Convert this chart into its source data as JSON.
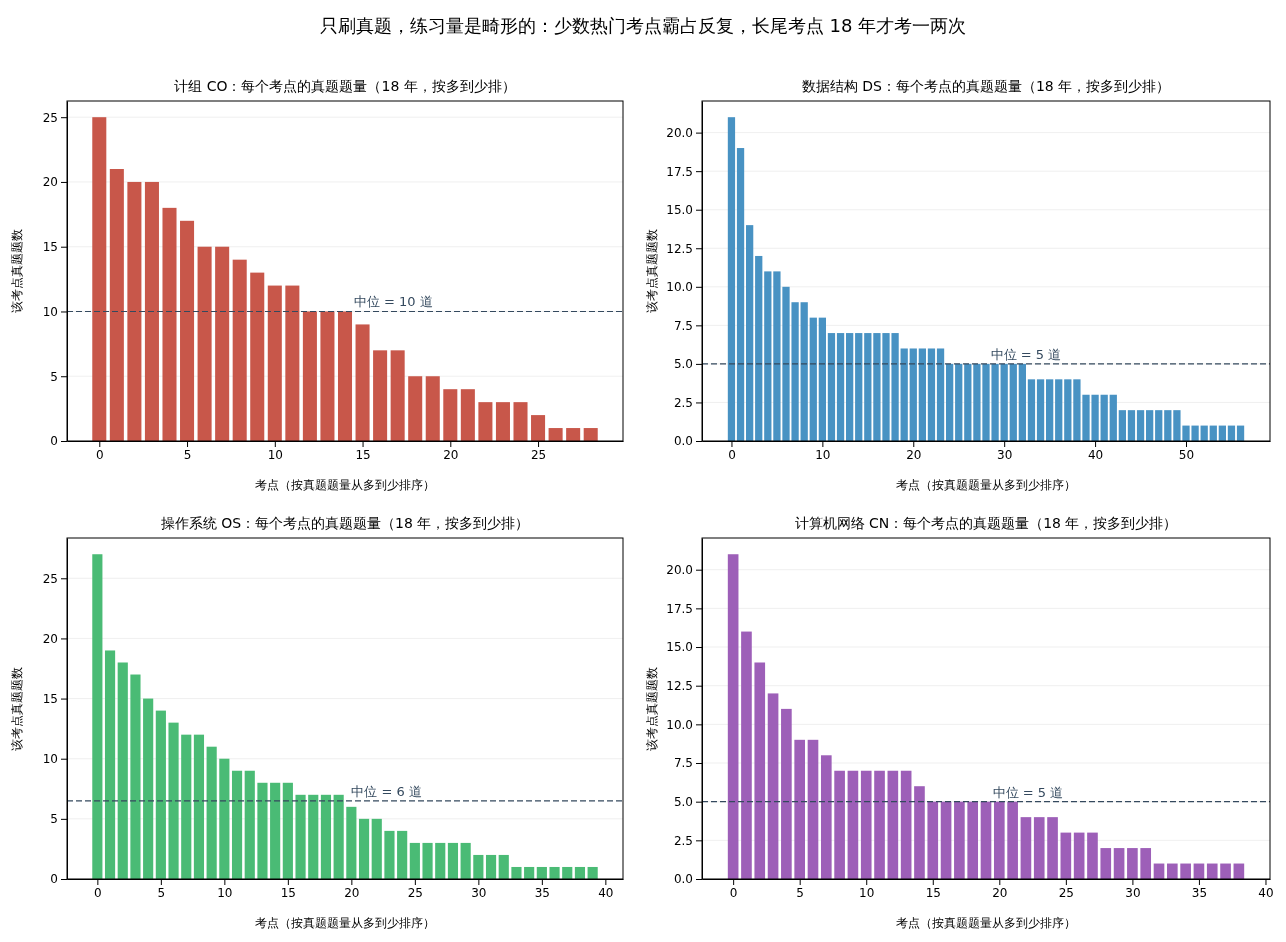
{
  "chart_data": [
    {
      "type": "bar",
      "title": "计组 CO：每个考点的真题题量（18 年，按多到少排）",
      "xlabel": "考点（按真题题量从多到少排序）",
      "ylabel": "该考点真题题数",
      "annotations": [
        "只刷真题，练习量是畸形的：少数热门考点霸占反复，长尾考点 18 年才考一两次"
      ],
      "color": "#c8574a",
      "grid": "y",
      "x": [
        0,
        1,
        2,
        3,
        4,
        5,
        6,
        7,
        8,
        9,
        10,
        11,
        12,
        13,
        14,
        15,
        16,
        17,
        18,
        19,
        20,
        21,
        22,
        23,
        24,
        25,
        26,
        27,
        28
      ],
      "values": [
        25,
        21,
        20,
        20,
        18,
        17,
        15,
        15,
        14,
        13,
        12,
        12,
        10,
        10,
        10,
        9,
        7,
        7,
        5,
        5,
        4,
        4,
        3,
        3,
        3,
        2,
        1,
        1,
        1
      ],
      "xlim": [
        -1.84,
        29.84
      ],
      "xticks": [
        0,
        5,
        10,
        15,
        20,
        25
      ],
      "ylim": [
        0,
        26.25
      ],
      "yticks": [
        0,
        5,
        10,
        15,
        20,
        25
      ],
      "ref_lines": [
        {
          "axis": "y",
          "value": 10,
          "label": "中位 = 10 道",
          "color": "#34495e",
          "line_style": "dashed"
        }
      ]
    },
    {
      "type": "bar",
      "title": "数据结构 DS：每个考点的真题题量（18 年，按多到少排）",
      "xlabel": "考点（按真题题量从多到少排序）",
      "ylabel": "该考点真题题数",
      "color": "#4892c3",
      "grid": "y",
      "x": [
        0,
        1,
        2,
        3,
        4,
        5,
        6,
        7,
        8,
        9,
        10,
        11,
        12,
        13,
        14,
        15,
        16,
        17,
        18,
        19,
        20,
        21,
        22,
        23,
        24,
        25,
        26,
        27,
        28,
        29,
        30,
        31,
        32,
        33,
        34,
        35,
        36,
        37,
        38,
        39,
        40,
        41,
        42,
        43,
        44,
        45,
        46,
        47,
        48,
        49,
        50,
        51,
        52,
        53,
        54,
        55,
        56
      ],
      "values": [
        21,
        19,
        14,
        12,
        11,
        11,
        10,
        9,
        9,
        8,
        8,
        7,
        7,
        7,
        7,
        7,
        7,
        7,
        7,
        6,
        6,
        6,
        6,
        6,
        5,
        5,
        5,
        5,
        5,
        5,
        5,
        5,
        5,
        4,
        4,
        4,
        4,
        4,
        4,
        3,
        3,
        3,
        3,
        2,
        2,
        2,
        2,
        2,
        2,
        2,
        1,
        1,
        1,
        1,
        1,
        1,
        1
      ],
      "xlim": [
        -3.24,
        59.24
      ],
      "xticks": [
        0,
        10,
        20,
        30,
        40,
        50
      ],
      "ylim": [
        0,
        22.05
      ],
      "yticks": [
        {
          "value": 0,
          "label": "0.0"
        },
        {
          "value": 2.5,
          "label": "2.5"
        },
        {
          "value": 5,
          "label": "5.0"
        },
        {
          "value": 7.5,
          "label": "7.5"
        },
        {
          "value": 10,
          "label": "10.0"
        },
        {
          "value": 12.5,
          "label": "12.5"
        },
        {
          "value": 15,
          "label": "15.0"
        },
        {
          "value": 17.5,
          "label": "17.5"
        },
        {
          "value": 20,
          "label": "20.0"
        }
      ],
      "ref_lines": [
        {
          "axis": "y",
          "value": 5,
          "label": "中位 = 5 道",
          "color": "#34495e",
          "line_style": "dashed"
        }
      ]
    },
    {
      "type": "bar",
      "title": "操作系统 OS：每个考点的真题题量（18 年，按多到少排）",
      "xlabel": "考点（按真题题量从多到少排序）",
      "ylabel": "该考点真题题数",
      "color": "#4abb75",
      "grid": "y",
      "x": [
        0,
        1,
        2,
        3,
        4,
        5,
        6,
        7,
        8,
        9,
        10,
        11,
        12,
        13,
        14,
        15,
        16,
        17,
        18,
        19,
        20,
        21,
        22,
        23,
        24,
        25,
        26,
        27,
        28,
        29,
        30,
        31,
        32,
        33,
        34,
        35,
        36,
        37,
        38,
        39
      ],
      "values": [
        27,
        19,
        18,
        17,
        15,
        14,
        13,
        12,
        12,
        11,
        10,
        9,
        9,
        8,
        8,
        8,
        7,
        7,
        7,
        7,
        6,
        5,
        5,
        4,
        4,
        3,
        3,
        3,
        3,
        3,
        2,
        2,
        2,
        1,
        1,
        1,
        1,
        1,
        1,
        1
      ],
      "xlim": [
        -2.39,
        41.39
      ],
      "xticks": [
        0,
        5,
        10,
        15,
        20,
        25,
        30,
        35,
        40
      ],
      "ylim": [
        0,
        28.35
      ],
      "yticks": [
        0,
        5,
        10,
        15,
        20,
        25
      ],
      "ref_lines": [
        {
          "axis": "y",
          "value": 6.5,
          "label": "中位 = 6 道",
          "color": "#34495e",
          "line_style": "dashed"
        }
      ]
    },
    {
      "type": "bar",
      "title": "计算机网络 CN：每个考点的真题题量（18 年，按多到少排）",
      "xlabel": "考点（按真题题量从多到少排序）",
      "ylabel": "该考点真题题数",
      "color": "#9d5fb8",
      "grid": "y",
      "x": [
        0,
        1,
        2,
        3,
        4,
        5,
        6,
        7,
        8,
        9,
        10,
        11,
        12,
        13,
        14,
        15,
        16,
        17,
        18,
        19,
        20,
        21,
        22,
        23,
        24,
        25,
        26,
        27,
        28,
        29,
        30,
        31,
        32,
        33,
        34,
        35,
        36,
        37,
        38
      ],
      "values": [
        21,
        16,
        14,
        12,
        11,
        9,
        9,
        8,
        7,
        7,
        7,
        7,
        7,
        7,
        6,
        5,
        5,
        5,
        5,
        5,
        5,
        5,
        4,
        4,
        4,
        3,
        3,
        3,
        2,
        2,
        2,
        2,
        1,
        1,
        1,
        1,
        1,
        1,
        1
      ],
      "xlim": [
        -2.34,
        40.34
      ],
      "xticks": [
        0,
        5,
        10,
        15,
        20,
        25,
        30,
        35,
        40
      ],
      "ylim": [
        0,
        22.05
      ],
      "yticks": [
        {
          "value": 0,
          "label": "0.0"
        },
        {
          "value": 2.5,
          "label": "2.5"
        },
        {
          "value": 5,
          "label": "5.0"
        },
        {
          "value": 7.5,
          "label": "7.5"
        },
        {
          "value": 10,
          "label": "10.0"
        },
        {
          "value": 12.5,
          "label": "12.5"
        },
        {
          "value": 15,
          "label": "15.0"
        },
        {
          "value": 17.5,
          "label": "17.5"
        },
        {
          "value": 20,
          "label": "20.0"
        }
      ],
      "ref_lines": [
        {
          "axis": "y",
          "value": 5,
          "label": "中位 = 5 道",
          "color": "#34495e",
          "line_style": "dashed"
        }
      ]
    }
  ]
}
